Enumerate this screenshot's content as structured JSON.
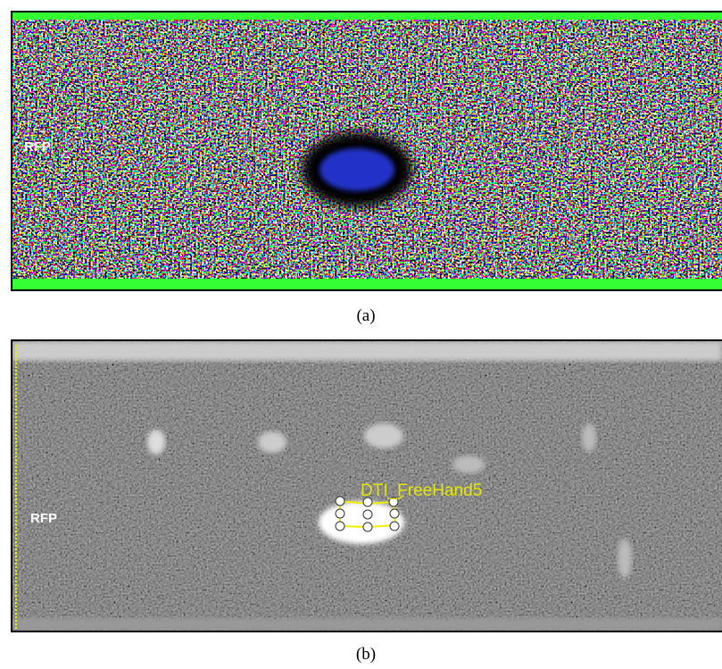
{
  "panel_a": {
    "marker": "RFP",
    "caption": "(a)"
  },
  "panel_b": {
    "marker": "RFP",
    "roi_label": "DTI_FreeHand5",
    "caption": "(b)"
  }
}
